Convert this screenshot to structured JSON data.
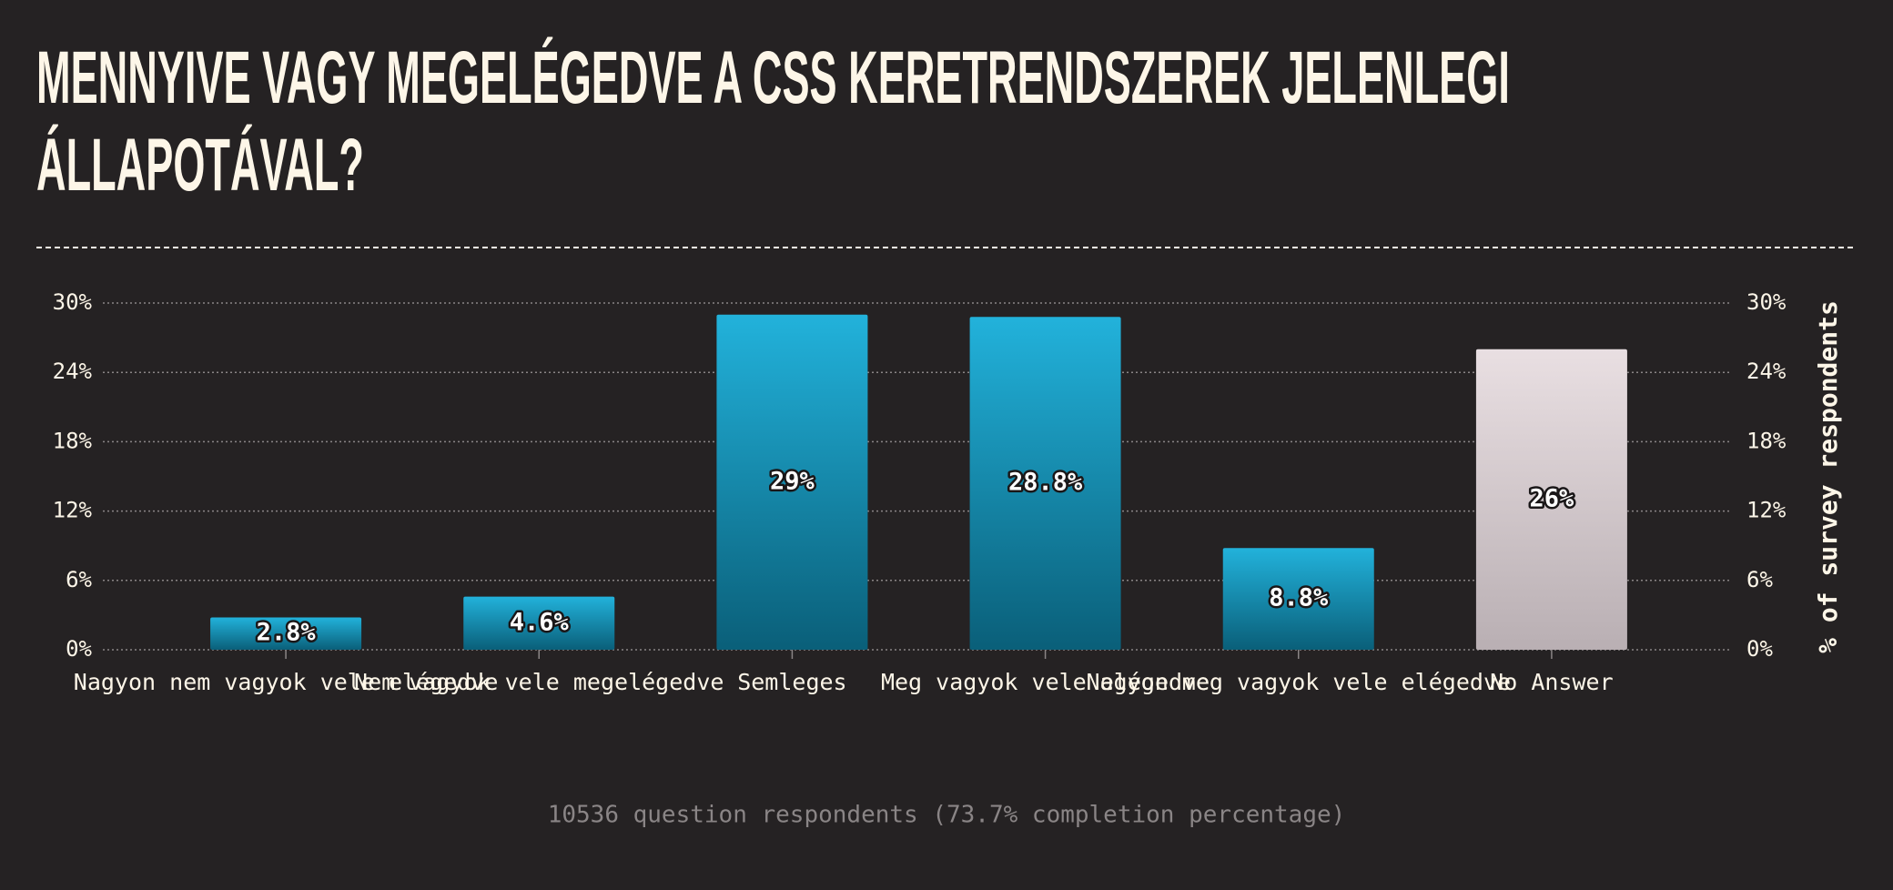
{
  "chart_data": {
    "type": "bar",
    "title": "MENNYIVE VAGY MEGELÉGEDVE A CSS KERETRENDSZEREK JELENLEGI ÁLLAPOTÁVAL?",
    "categories": [
      "Nagyon nem vagyok vele elégedve",
      "Nem vagyok vele megelégedve",
      "Semleges",
      "Meg vagyok vele elégedve",
      "Nagyon meg vagyok vele elégedve",
      "No Answer"
    ],
    "values": [
      2.8,
      4.6,
      29,
      28.8,
      8.8,
      26
    ],
    "value_labels": [
      "2.8%",
      "4.6%",
      "29%",
      "28.8%",
      "8.8%",
      "26%"
    ],
    "colors": [
      "#1fa9d1",
      "#1fa9d1",
      "#1fa9d1",
      "#1fa9d1",
      "#1fa9d1",
      "#e4dadd"
    ],
    "ylim": [
      0,
      30
    ],
    "yticks": [
      {
        "value": 0,
        "label": "0%"
      },
      {
        "value": 6,
        "label": "6%"
      },
      {
        "value": 12,
        "label": "12%"
      },
      {
        "value": 18,
        "label": "18%"
      },
      {
        "value": 24,
        "label": "24%"
      },
      {
        "value": 30,
        "label": "30%"
      }
    ],
    "y2_label": "% of survey respondents",
    "grid": true,
    "footer": "10536 question respondents (73.7% completion percentage)"
  }
}
